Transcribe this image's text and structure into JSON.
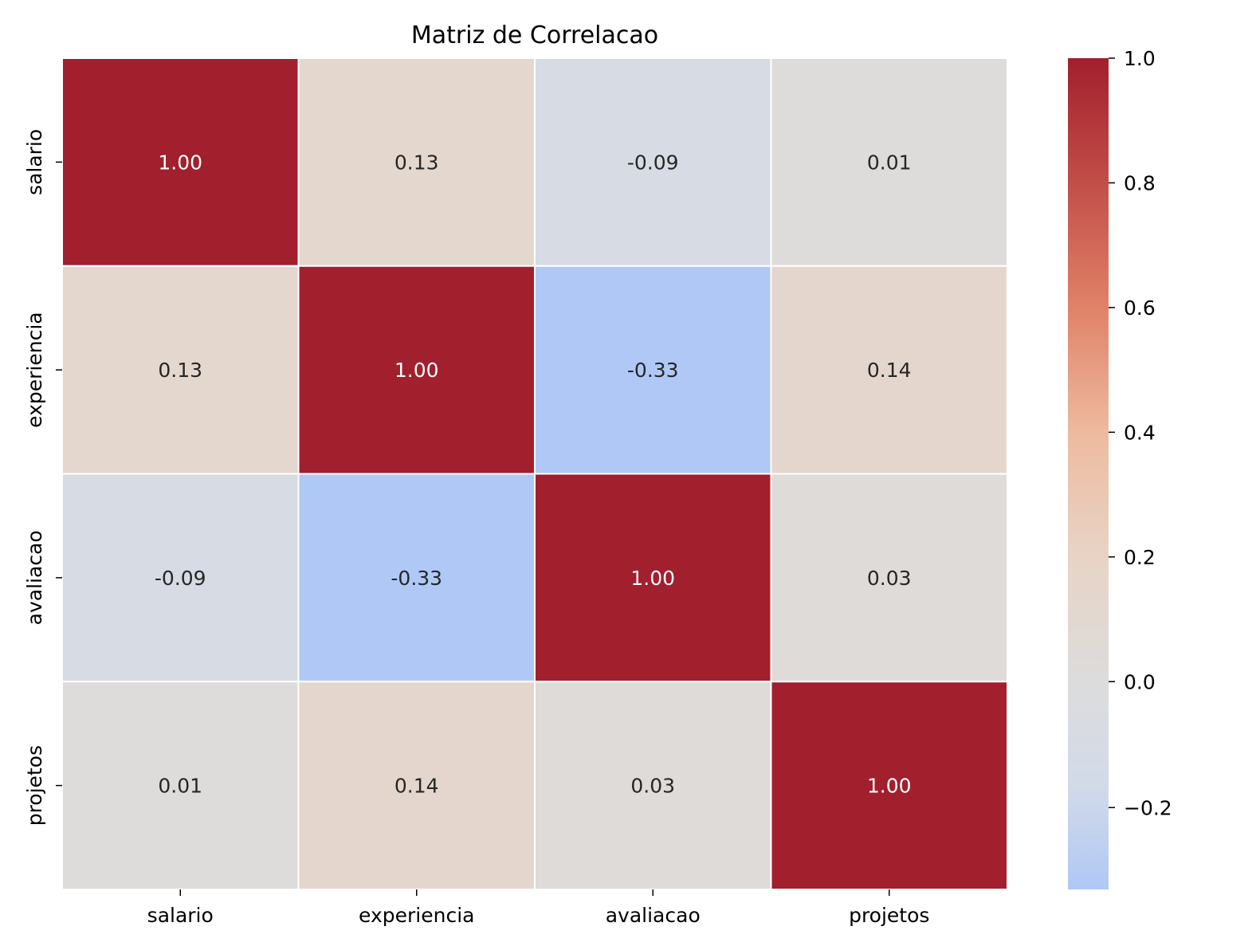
{
  "chart_data": {
    "type": "heatmap",
    "title": "Matriz de Correlacao",
    "xlabel": "",
    "ylabel": "",
    "x_categories": [
      "salario",
      "experiencia",
      "avaliacao",
      "projetos"
    ],
    "y_categories": [
      "salario",
      "experiencia",
      "avaliacao",
      "projetos"
    ],
    "values": [
      [
        1.0,
        0.13,
        -0.09,
        0.01
      ],
      [
        0.13,
        1.0,
        -0.33,
        0.14
      ],
      [
        -0.09,
        -0.33,
        1.0,
        0.03
      ],
      [
        0.01,
        0.14,
        0.03,
        1.0
      ]
    ],
    "annotations": [
      [
        "1.00",
        "0.13",
        "-0.09",
        "0.01"
      ],
      [
        "0.13",
        "1.00",
        "-0.33",
        "0.14"
      ],
      [
        "-0.09",
        "-0.33",
        "1.00",
        "0.03"
      ],
      [
        "0.01",
        "0.14",
        "0.03",
        "1.00"
      ]
    ],
    "colormap": "coolwarm",
    "center": 0,
    "vmin": -0.33,
    "vmax": 1.0,
    "colorbar": {
      "ticks": [
        1.0,
        0.8,
        0.6,
        0.4,
        0.2,
        0.0,
        -0.2
      ],
      "tick_labels": [
        "1.0",
        "0.8",
        "0.6",
        "0.4",
        "0.2",
        "0.0",
        "−0.2"
      ]
    },
    "cell_border_color": "#ffffff",
    "annotation_dark_color": "#262626",
    "annotation_light_color": "#ffffff"
  }
}
